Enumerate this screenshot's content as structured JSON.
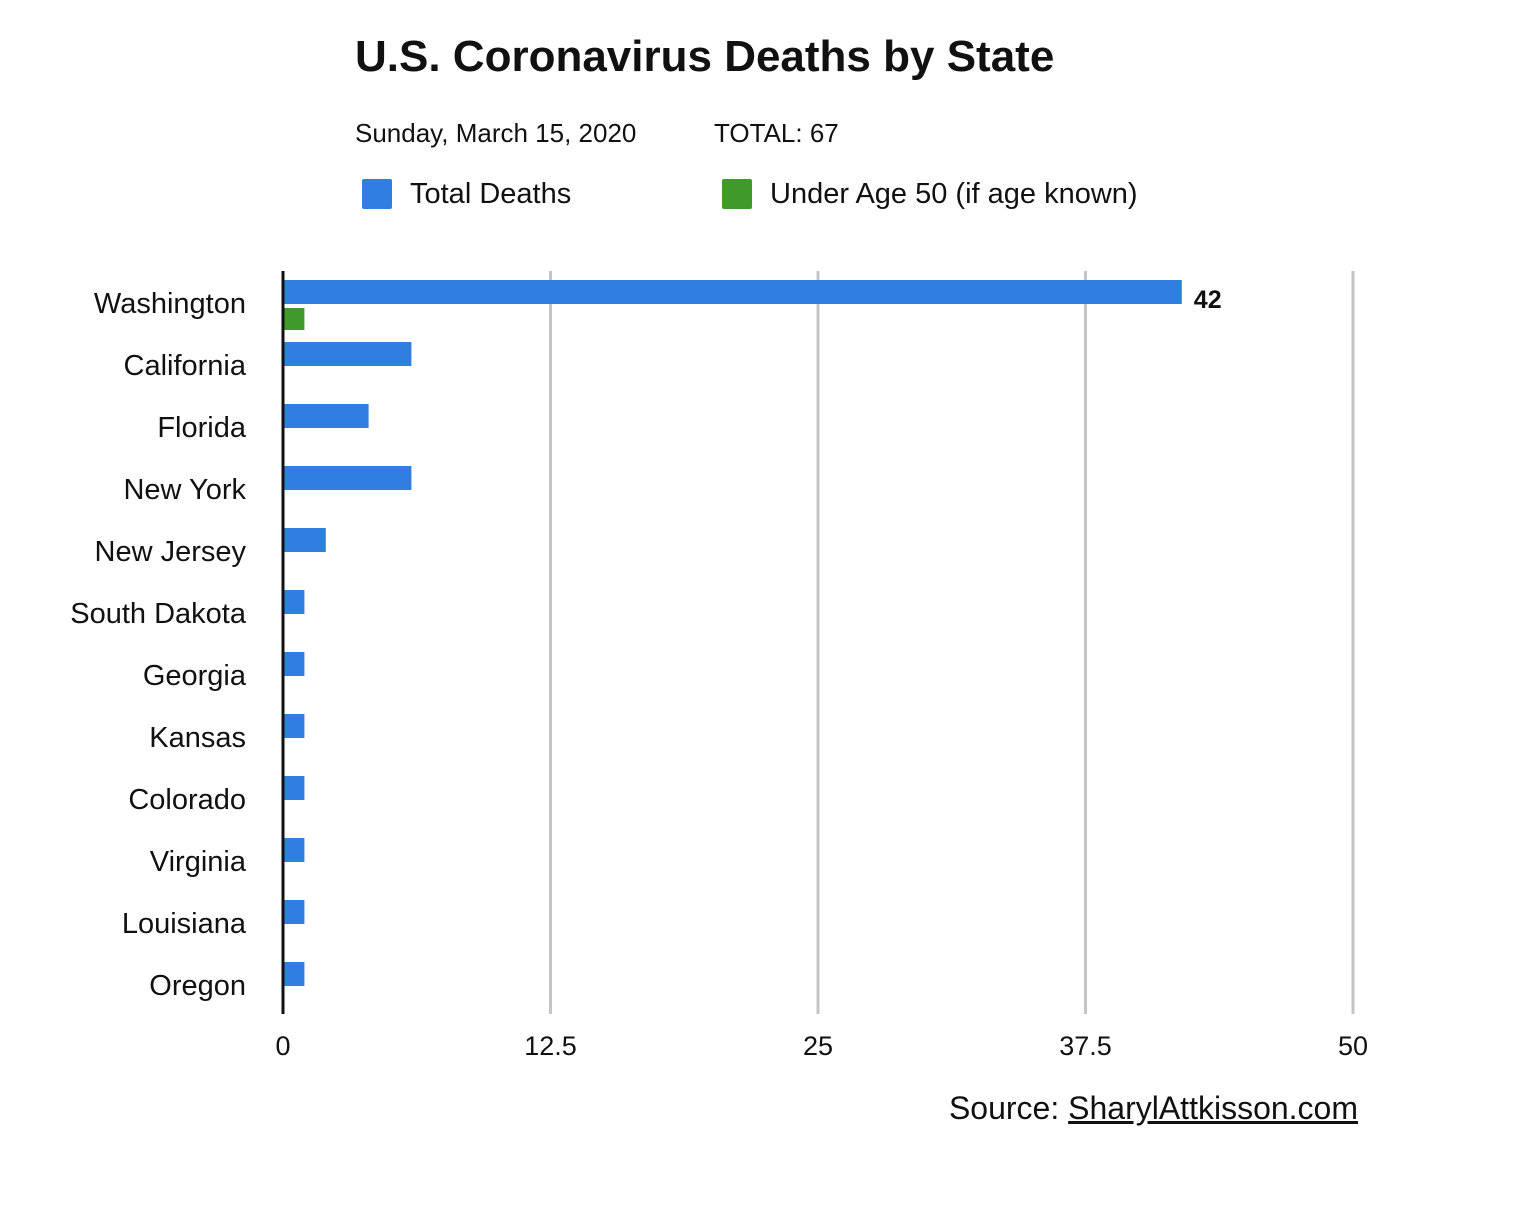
{
  "header": {
    "title": "U.S. Coronavirus Deaths by State",
    "date": "Sunday, March 15, 2020",
    "total": "TOTAL: 67"
  },
  "legend": [
    {
      "label": "Total Deaths",
      "color": "#2f7ee0"
    },
    {
      "label": "Under Age 50 (if age known)",
      "color": "#3f9a2b"
    }
  ],
  "source": {
    "prefix": "Source:",
    "link_text": "SharylAttkisson.com"
  },
  "chart_data": {
    "type": "bar",
    "orientation": "horizontal",
    "categories": [
      "Washington",
      "California",
      "Florida",
      "New York",
      "New Jersey",
      "South Dakota",
      "Georgia",
      "Kansas",
      "Colorado",
      "Virginia",
      "Louisiana",
      "Oregon"
    ],
    "series": [
      {
        "name": "Total Deaths",
        "color": "#2f7ee0",
        "values": [
          42,
          6,
          4,
          6,
          2,
          1,
          1,
          1,
          1,
          1,
          1,
          1
        ]
      },
      {
        "name": "Under Age 50 (if age known)",
        "color": "#3f9a2b",
        "values": [
          1,
          null,
          null,
          null,
          null,
          null,
          null,
          null,
          null,
          null,
          null,
          null
        ]
      }
    ],
    "data_labels": [
      {
        "category": "Washington",
        "series": "Total Deaths",
        "text": "42"
      }
    ],
    "xlim": [
      0,
      50
    ],
    "xticks": [
      "0",
      "12.5",
      "25",
      "37.5",
      "50"
    ],
    "grid": true
  }
}
